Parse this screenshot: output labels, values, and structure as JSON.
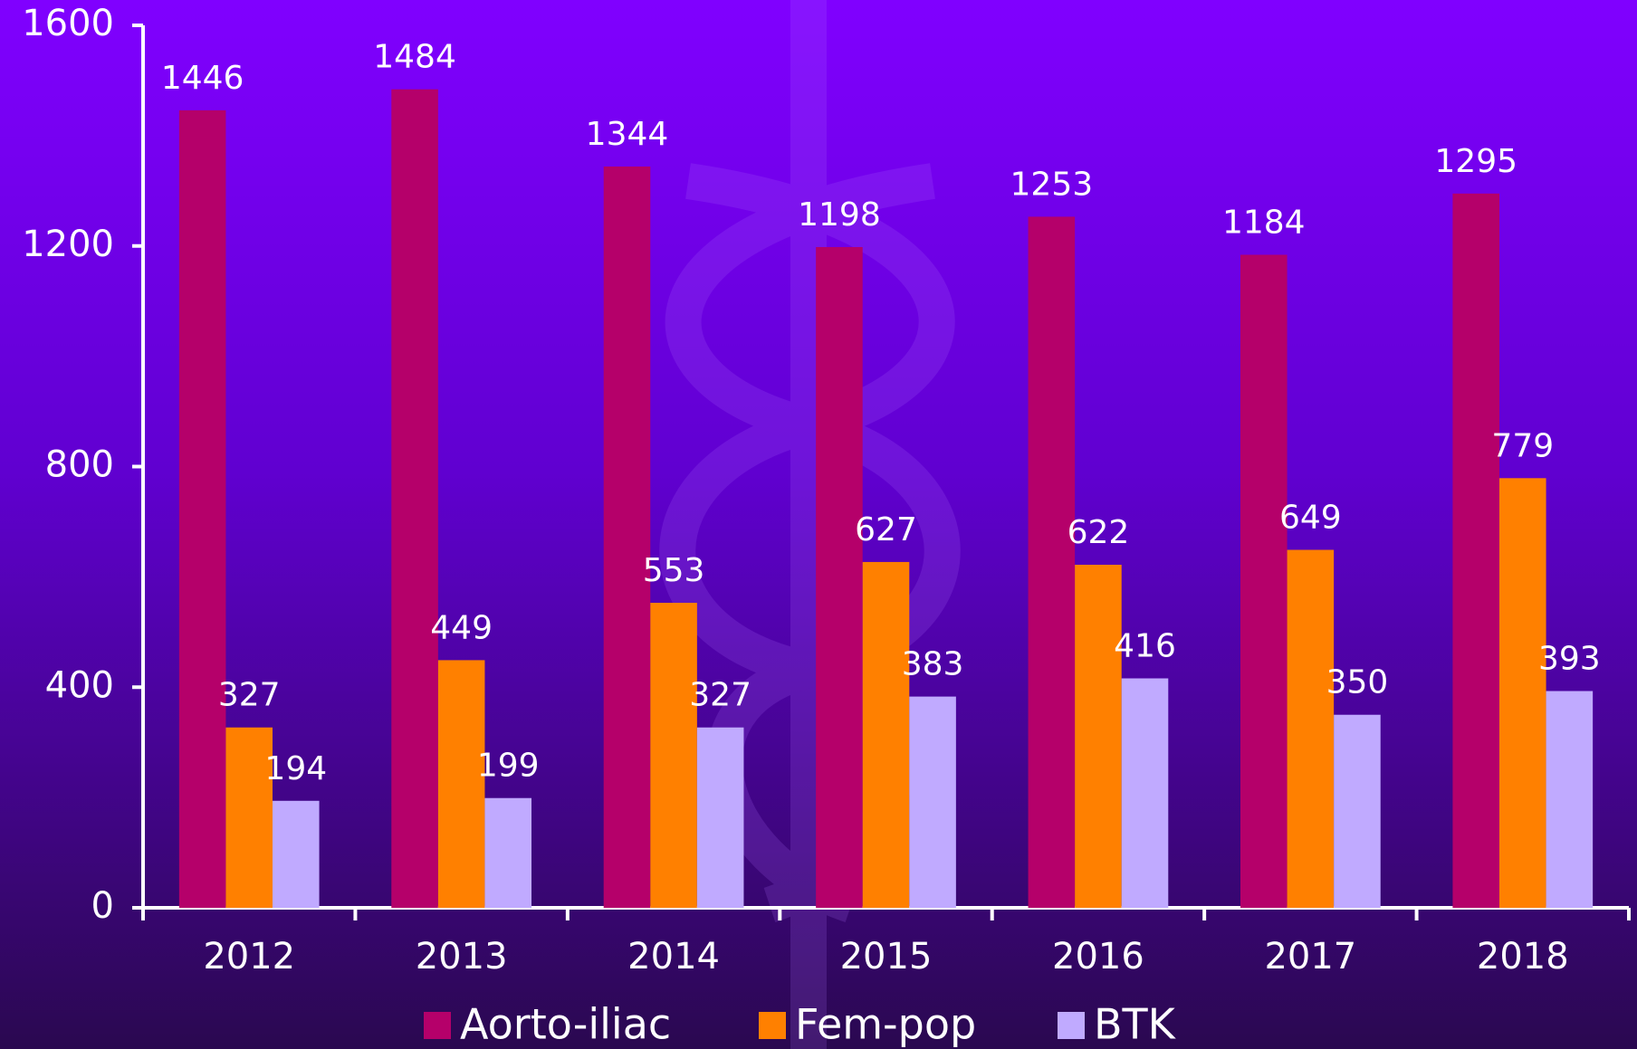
{
  "chart_data": {
    "type": "bar",
    "categories": [
      "2012",
      "2013",
      "2014",
      "2015",
      "2016",
      "2017",
      "2018"
    ],
    "series": [
      {
        "name": "Aorto-iliac",
        "color": "#b5006a",
        "values": [
          1446,
          1484,
          1344,
          1198,
          1253,
          1184,
          1295
        ]
      },
      {
        "name": "Fem-pop",
        "color": "#ff8000",
        "values": [
          327,
          449,
          553,
          627,
          622,
          649,
          779
        ]
      },
      {
        "name": "BTK",
        "color": "#c0aaff",
        "values": [
          194,
          199,
          327,
          383,
          416,
          350,
          393
        ]
      }
    ],
    "ylim": [
      0,
      1600
    ],
    "yticks": [
      0,
      400,
      800,
      1200,
      1600
    ],
    "legend": "bottom"
  }
}
